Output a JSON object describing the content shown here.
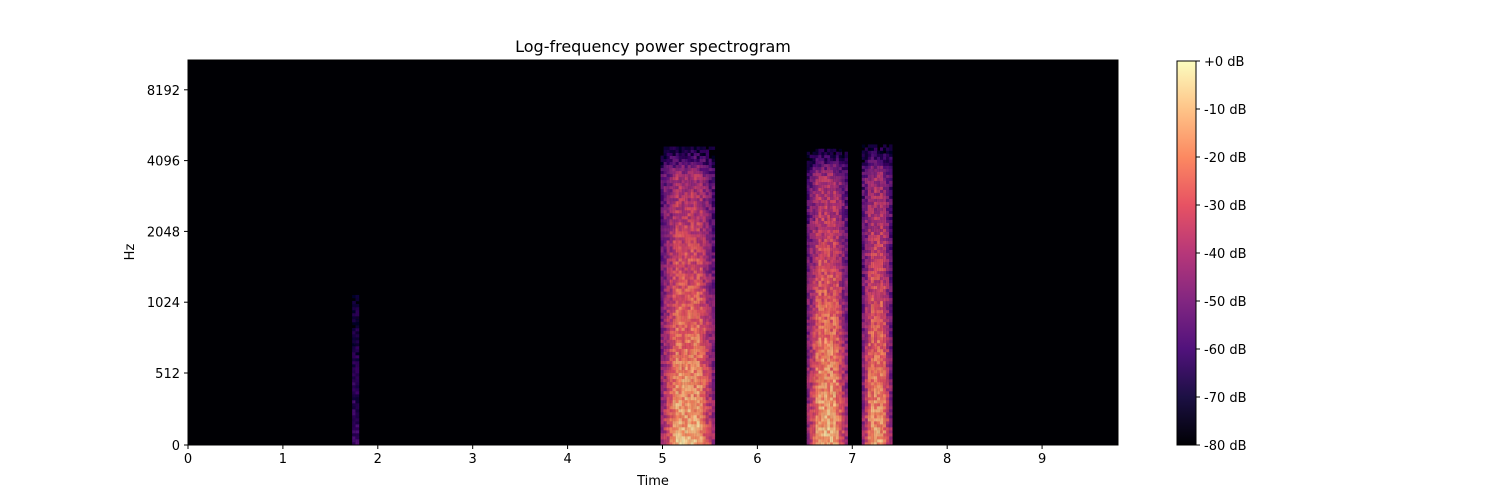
{
  "chart_data": {
    "type": "heatmap",
    "title": "Log-frequency power spectrogram",
    "xlabel": "Time",
    "ylabel": "Hz",
    "xlim": [
      0,
      9.8
    ],
    "x_ticks": [
      0,
      1,
      2,
      3,
      4,
      5,
      6,
      7,
      8,
      9
    ],
    "y_scale": "log",
    "y_ticks": [
      0,
      512,
      1024,
      2048,
      4096,
      8192
    ],
    "y_tick_labels": [
      "0",
      "512",
      "1024",
      "2048",
      "4096",
      "8192"
    ],
    "colormap": "magma",
    "colorbar": {
      "min_db": -80,
      "max_db": 0,
      "ticks": [
        0,
        -10,
        -20,
        -30,
        -40,
        -50,
        -60,
        -70,
        -80
      ],
      "tick_labels": [
        "+0 dB",
        "-10 dB",
        "-20 dB",
        "-30 dB",
        "-40 dB",
        "-50 dB",
        "-60 dB",
        "-70 dB",
        "-80 dB"
      ]
    },
    "background_db": -80,
    "bursts": [
      {
        "t_start": 1.73,
        "t_end": 1.8,
        "f_max_hz": 1100,
        "peak_db": -62
      },
      {
        "t_start": 4.98,
        "t_end": 5.55,
        "f_max_hz": 4700,
        "peak_db": -8
      },
      {
        "t_start": 6.52,
        "t_end": 6.95,
        "f_max_hz": 4600,
        "peak_db": -8
      },
      {
        "t_start": 7.1,
        "t_end": 7.42,
        "f_max_hz": 4800,
        "peak_db": -12
      }
    ]
  }
}
